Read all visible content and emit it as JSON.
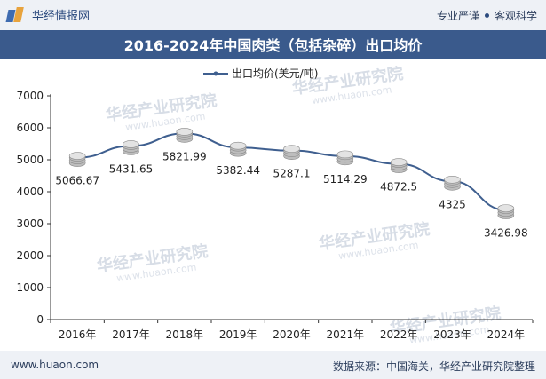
{
  "header": {
    "brand": "华经情报网",
    "tagline_left": "专业严谨",
    "tagline_right": "客观科学"
  },
  "title": "2016-2024年中国肉类（包括杂碎）出口均价",
  "footer": {
    "site": "www.huaon.com",
    "source": "数据来源：中国海关，华经产业研究院整理"
  },
  "watermark": {
    "text": "华经产业研究院",
    "url": "www.huaon.com"
  },
  "colors": {
    "line": "#3f5f8f",
    "title_bg": "#3a5a8c",
    "coin": "#c9c9c9"
  },
  "chart_data": {
    "type": "line",
    "categories": [
      "2016年",
      "2017年",
      "2018年",
      "2019年",
      "2020年",
      "2021年",
      "2022年",
      "2023年",
      "2024年"
    ],
    "series": [
      {
        "name": "出口均价(美元/吨)",
        "values": [
          5066.67,
          5431.65,
          5821.99,
          5382.44,
          5287.1,
          5114.29,
          4872.5,
          4325,
          3426.98
        ],
        "labels": [
          "5066.67",
          "5431.65",
          "5821.99",
          "5382.44",
          "5287.1",
          "5114.29",
          "4872.5",
          "4325",
          "3426.98"
        ]
      }
    ],
    "ylim": [
      0,
      7000
    ],
    "yticks": [
      0,
      1000,
      2000,
      3000,
      4000,
      5000,
      6000,
      7000
    ],
    "legend_position": "top-center",
    "grid": false
  }
}
